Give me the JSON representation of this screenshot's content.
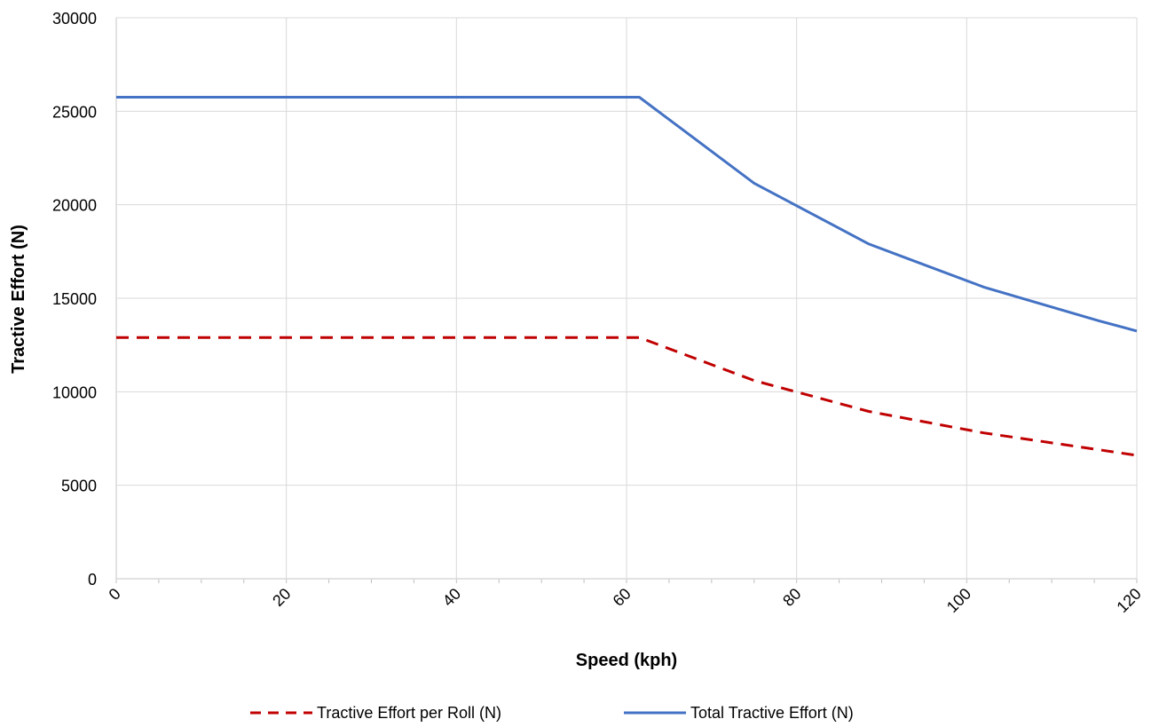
{
  "chart_data": {
    "type": "line",
    "title": "",
    "xlabel": "Speed (kph)",
    "ylabel": "Tractive Effort  (N)",
    "xlim": [
      0,
      120
    ],
    "ylim": [
      0,
      30000
    ],
    "x_ticks": [
      "0",
      "20",
      "40",
      "60",
      "80",
      "100",
      "120"
    ],
    "y_ticks": [
      "0",
      "5000",
      "10000",
      "15000",
      "20000",
      "25000",
      "30000"
    ],
    "grid": true,
    "legend_position": "bottom",
    "series": [
      {
        "name": "Tractive Effort per Roll (N)",
        "color": "#c00000",
        "style": "dashed",
        "x": [
          0,
          61.5,
          75,
          88.5,
          102,
          115.5,
          120
        ],
        "y": [
          12900,
          12900,
          10600,
          8950,
          7800,
          6900,
          6600
        ]
      },
      {
        "name": "Total Tractive Effort (N)",
        "color": "#4472c4",
        "style": "solid",
        "x": [
          0,
          61.5,
          75,
          88.5,
          102,
          115.5,
          120
        ],
        "y": [
          25750,
          25750,
          21150,
          17900,
          15600,
          13800,
          13250
        ]
      }
    ]
  }
}
